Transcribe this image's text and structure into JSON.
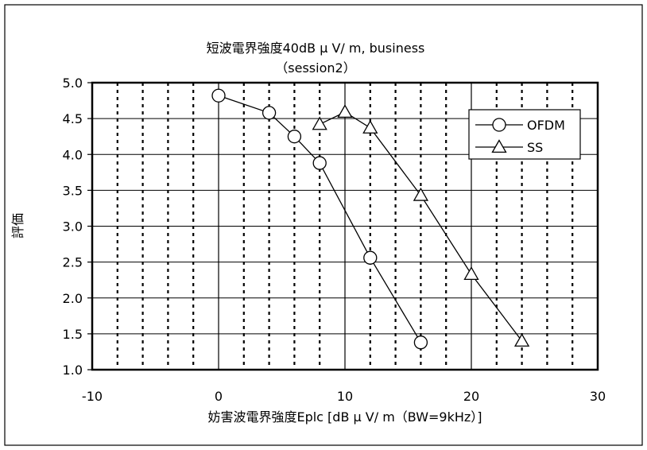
{
  "chart_data": {
    "type": "line",
    "title": "短波電界強度40dB μ V/ m, business",
    "subtitle": "（session2）",
    "xlabel": "妨害波電界強度Eplc [dB μ V/ m（BW=9kHz）]",
    "ylabel": "評価",
    "xlim": [
      -10,
      30
    ],
    "ylim": [
      1.0,
      5.0
    ],
    "x_ticks": [
      -10,
      0,
      10,
      20,
      30
    ],
    "x_tick_labels": [
      "-10",
      "0",
      "10",
      "20",
      "30"
    ],
    "y_ticks": [
      1.0,
      1.5,
      2.0,
      2.5,
      3.0,
      3.5,
      4.0,
      4.5,
      5.0
    ],
    "y_tick_labels": [
      "1.0",
      "1.5",
      "2.0",
      "2.5",
      "3.0",
      "3.5",
      "4.0",
      "4.5",
      "5.0"
    ],
    "minor_x_gridlines_dotted": [
      -8,
      -6,
      -4,
      -2,
      2,
      4,
      6,
      8,
      12,
      14,
      16,
      18,
      22,
      24,
      26,
      28
    ],
    "major_x_gridlines_solid": [
      0,
      10,
      20
    ],
    "grid": true,
    "legend_placement": "top-right",
    "series": [
      {
        "name": "OFDM",
        "marker": "circle",
        "color": "#000000",
        "x": [
          0,
          4,
          6,
          8,
          12,
          16
        ],
        "y": [
          4.82,
          4.58,
          4.25,
          3.88,
          2.56,
          1.38
        ]
      },
      {
        "name": "SS",
        "marker": "triangle",
        "color": "#000000",
        "x": [
          8,
          10,
          12,
          16,
          20,
          24
        ],
        "y": [
          4.42,
          4.59,
          4.37,
          3.43,
          2.33,
          1.4
        ]
      }
    ]
  }
}
